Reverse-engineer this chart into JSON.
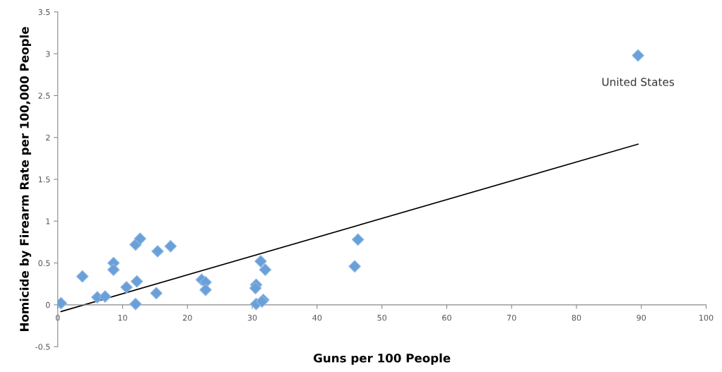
{
  "chart_data": {
    "type": "scatter",
    "xlabel": "Guns per 100 People",
    "ylabel": "Homicide by Firearm Rate per 100,000 People",
    "xlim": [
      0,
      100
    ],
    "ylim": [
      -0.5,
      3.5
    ],
    "xticks": [
      0,
      10,
      20,
      30,
      40,
      50,
      60,
      70,
      80,
      90,
      100
    ],
    "yticks": [
      -0.5,
      0,
      0.5,
      1,
      1.5,
      2,
      2.5,
      3,
      3.5
    ],
    "grid": false,
    "series": [
      {
        "marker": "diamond",
        "color": "#6a9fd8",
        "x": [
          0.5,
          3.8,
          6.1,
          7.3,
          8.6,
          8.6,
          10.6,
          12.0,
          12.7,
          12.2,
          12.0,
          15.4,
          15.2,
          17.4,
          22.2,
          22.8,
          22.8,
          30.6,
          30.5,
          30.6,
          31.3,
          32.0,
          31.7,
          31.5,
          46.3,
          45.8,
          89.5
        ],
        "values": [
          0.02,
          0.34,
          0.09,
          0.1,
          0.5,
          0.42,
          0.21,
          0.72,
          0.79,
          0.28,
          0.01,
          0.64,
          0.14,
          0.7,
          0.3,
          0.27,
          0.18,
          0.24,
          0.2,
          0.01,
          0.52,
          0.42,
          0.06,
          0.04,
          0.78,
          0.46,
          2.98
        ]
      },
      {
        "type": "line",
        "marker": "none",
        "color": "#000000",
        "x": [
          0.5,
          89.5
        ],
        "values": [
          -0.08,
          1.92
        ]
      }
    ],
    "annotations": [
      {
        "text": "United States",
        "x": 89.5,
        "y": 2.98
      }
    ]
  }
}
